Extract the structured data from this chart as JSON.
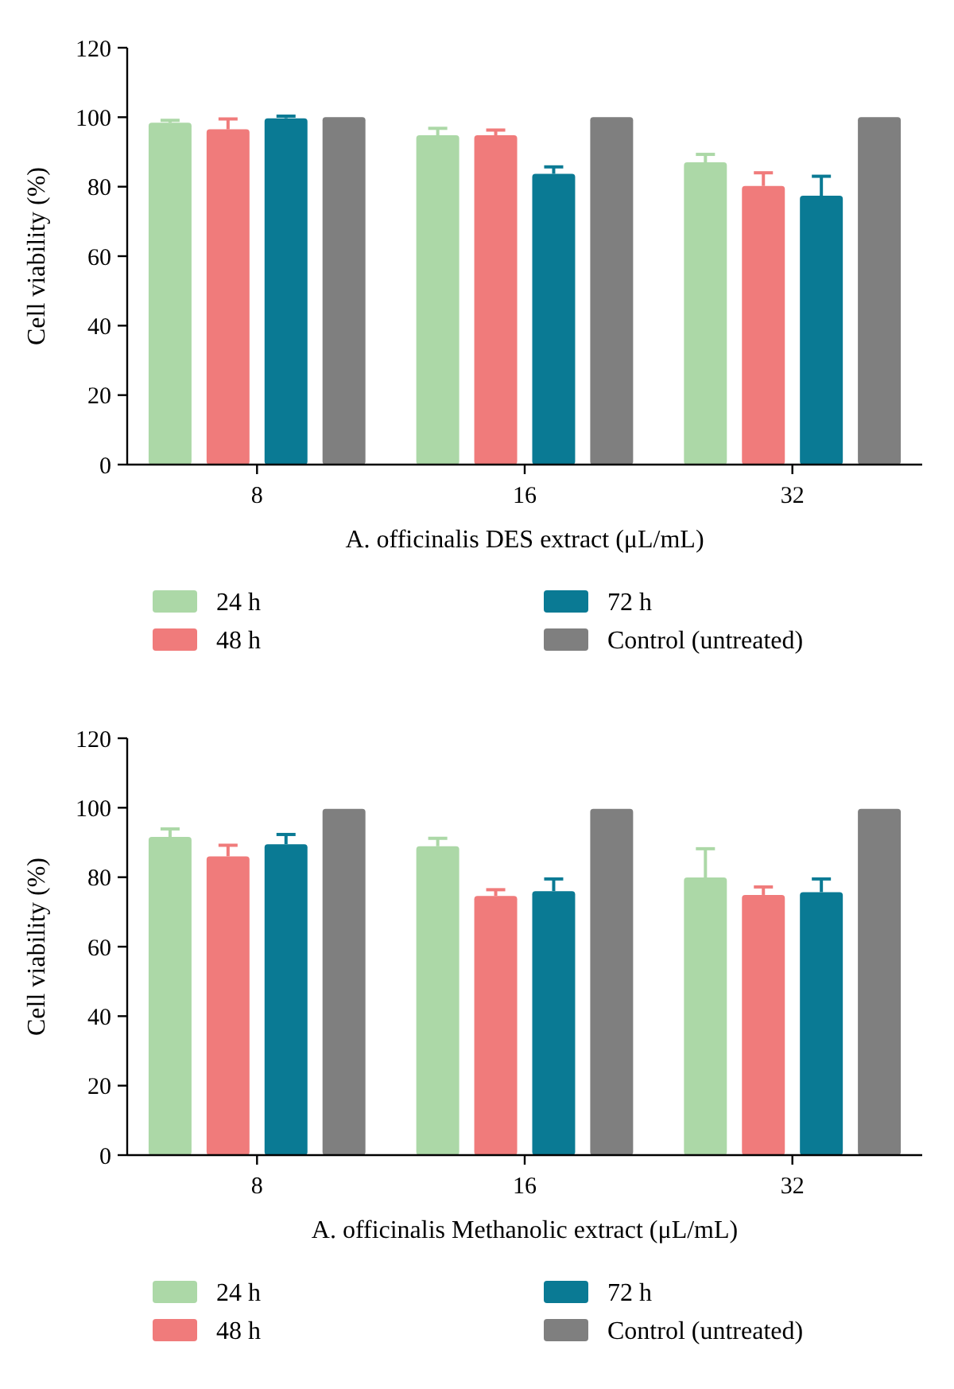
{
  "chart_data": [
    {
      "type": "bar",
      "categories": [
        "8",
        "16",
        "32"
      ],
      "xlabel": "A. officinalis DES extract (μL/mL)",
      "ylabel": "Cell viability (%)",
      "ylim": [
        0,
        120
      ],
      "yticks": [
        0,
        20,
        40,
        60,
        80,
        100,
        120
      ],
      "grid": false,
      "legend": "bottom",
      "series": [
        {
          "name": "24 h",
          "color": "#acd8a7",
          "values": [
            98.4,
            94.8,
            87
          ],
          "errors": [
            0.7,
            2,
            2.3
          ]
        },
        {
          "name": "48 h",
          "color": "#f07b7b",
          "values": [
            96.5,
            94.8,
            80.2
          ],
          "errors": [
            3,
            1.5,
            3.8
          ]
        },
        {
          "name": "72 h",
          "color": "#0a7a94",
          "values": [
            99.7,
            83.7,
            77.4
          ],
          "errors": [
            0.6,
            2,
            5.6
          ]
        },
        {
          "name": "Control (untreated)",
          "color": "#7f7f7f",
          "values": [
            100,
            100,
            100
          ]
        }
      ]
    },
    {
      "type": "bar",
      "categories": [
        "8",
        "16",
        "32"
      ],
      "xlabel": "A. officinalis Methanolic extract (μL/mL)",
      "ylabel": "Cell viability (%)",
      "ylim": [
        0,
        120
      ],
      "yticks": [
        0,
        20,
        40,
        60,
        80,
        100,
        120
      ],
      "grid": false,
      "legend": "bottom",
      "series": [
        {
          "name": "24 h",
          "color": "#acd8a7",
          "values": [
            91.6,
            88.9,
            79.9
          ],
          "errors": [
            2.3,
            2.3,
            8.3
          ]
        },
        {
          "name": "48 h",
          "color": "#f07b7b",
          "values": [
            86,
            74.6,
            74.9
          ],
          "errors": [
            3.2,
            1.8,
            2.3
          ]
        },
        {
          "name": "72 h",
          "color": "#0a7a94",
          "values": [
            89.5,
            76,
            75.7
          ],
          "errors": [
            2.8,
            3.5,
            3.8
          ]
        },
        {
          "name": "Control (untreated)",
          "color": "#7f7f7f",
          "values": [
            99.7,
            99.7,
            99.7
          ]
        }
      ]
    }
  ]
}
